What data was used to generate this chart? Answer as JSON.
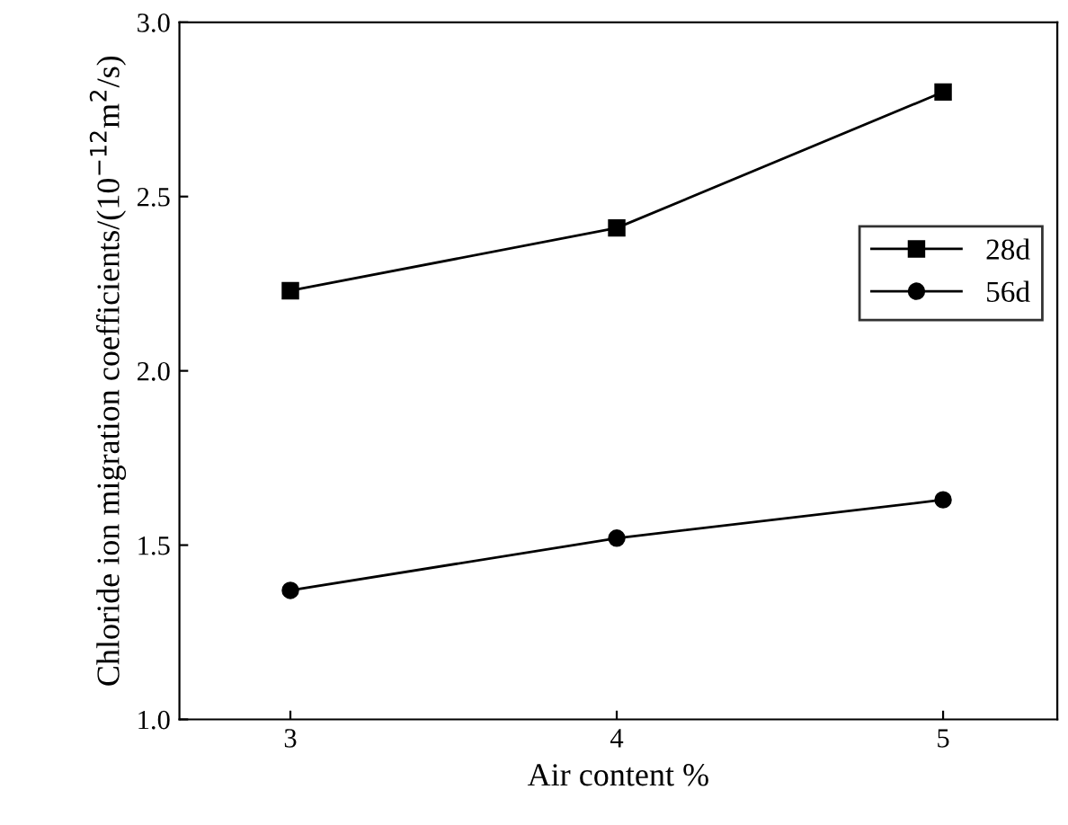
{
  "chart_data": {
    "type": "line",
    "xlabel": "Air content %",
    "ylabel": "Chloride ion migration coefficients/(10$^{−12}$m$^{2}$/s)",
    "x": [
      3,
      4,
      5
    ],
    "series": [
      {
        "name": "28d",
        "color": "#000000",
        "marker": "square",
        "values": [
          2.23,
          2.41,
          2.8
        ]
      },
      {
        "name": "56d",
        "color": "#000000",
        "marker": "circle",
        "values": [
          1.37,
          1.52,
          1.63
        ]
      }
    ],
    "xlim": [
      2.66,
      5.35
    ],
    "xticks": [
      3,
      4,
      5
    ],
    "ylim": [
      1.0,
      3.0
    ],
    "yticks": [
      {
        "value": 1.0,
        "label": "1.0"
      },
      {
        "value": 1.5,
        "label": "1.5"
      },
      {
        "value": 2.0,
        "label": "2.0"
      },
      {
        "value": 2.5,
        "label": "2.5"
      },
      {
        "value": 3.0,
        "label": "3.0"
      }
    ],
    "grid": false,
    "legend": "right",
    "line_style": "solid"
  }
}
